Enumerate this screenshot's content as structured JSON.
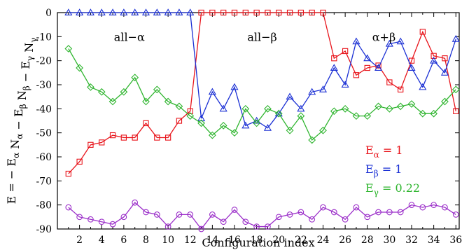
{
  "chart_data": {
    "type": "line",
    "xlabel": "Configuration index",
    "ylabel": "E = − Eα Nα − Eβ Nβ − Eγ Nγ",
    "xlim": [
      0,
      36.3
    ],
    "ylim": [
      -90,
      0
    ],
    "xticks": [
      2,
      4,
      6,
      8,
      10,
      12,
      14,
      16,
      18,
      20,
      22,
      24,
      26,
      28,
      30,
      32,
      34,
      36
    ],
    "yticks": [
      0,
      -10,
      -20,
      -30,
      -40,
      -50,
      -60,
      -70,
      -80,
      -90
    ],
    "grid": false,
    "x": [
      1,
      2,
      3,
      4,
      5,
      6,
      7,
      8,
      9,
      10,
      11,
      12,
      13,
      14,
      15,
      16,
      17,
      18,
      19,
      20,
      21,
      22,
      23,
      24,
      25,
      26,
      27,
      28,
      29,
      30,
      31,
      32,
      33,
      34,
      35,
      36
    ],
    "series": [
      {
        "marker": "square",
        "color": "#e8141b",
        "values": [
          -67,
          -62,
          -55,
          -54,
          -51,
          -52,
          -52,
          -46,
          -52,
          -52,
          -45,
          -41,
          0,
          0,
          0,
          0,
          0,
          0,
          0,
          0,
          0,
          0,
          0,
          0,
          -19,
          -16,
          -26,
          -23,
          -22,
          -29,
          -32,
          -20,
          -8,
          -18,
          -19,
          -41
        ]
      },
      {
        "marker": "triangle",
        "color": "#1a2fd4",
        "values": [
          0,
          0,
          0,
          0,
          0,
          0,
          0,
          0,
          0,
          0,
          0,
          0,
          -44,
          -33,
          -40,
          -31,
          -47,
          -45,
          -48,
          -42,
          -35,
          -40,
          -33,
          -32,
          -23,
          -30,
          -12,
          -19,
          -23,
          -13,
          -12,
          -23,
          -31,
          -20,
          -25,
          -11
        ]
      },
      {
        "marker": "diamond",
        "color": "#2fb52f",
        "values": [
          -15,
          -23,
          -31,
          -33,
          -37,
          -33,
          -27,
          -37,
          -32,
          -37,
          -39,
          -43,
          -46,
          -51,
          -47,
          -50,
          -40,
          -46,
          -40,
          -42,
          -49,
          -43,
          -53,
          -49,
          -41,
          -40,
          -43,
          -43,
          -39,
          -40,
          -39,
          -38,
          -42,
          -42,
          -37,
          -32
        ]
      },
      {
        "marker": "circle",
        "color": "#9b2fc9",
        "values": [
          -81,
          -85,
          -86,
          -87,
          -88,
          -85,
          -79,
          -83,
          -84,
          -89,
          -84,
          -84,
          -90,
          -84,
          -87,
          -82,
          -87,
          -89,
          -89,
          -85,
          -84,
          -83,
          -86,
          -81,
          -83,
          -86,
          -81,
          -85,
          -83,
          -83,
          -83,
          -80,
          -81,
          -80,
          -81,
          -84
        ]
      }
    ],
    "annotations": [
      {
        "text": "all−α",
        "x": 6.5,
        "y": -10
      },
      {
        "text": "all−β",
        "x": 18.5,
        "y": -10
      },
      {
        "text": "α+β",
        "x": 29.5,
        "y": -10
      }
    ],
    "legend": {
      "placement": "right",
      "entries": [
        {
          "symbol": "E",
          "subscript": "α",
          "rest": " = 1",
          "color": "#e8141b"
        },
        {
          "symbol": "E",
          "subscript": "β",
          "rest": " = 1",
          "color": "#1a2fd4"
        },
        {
          "symbol": "E",
          "subscript": "γ",
          "rest": " = 0.22",
          "color": "#2fb52f"
        }
      ]
    }
  }
}
